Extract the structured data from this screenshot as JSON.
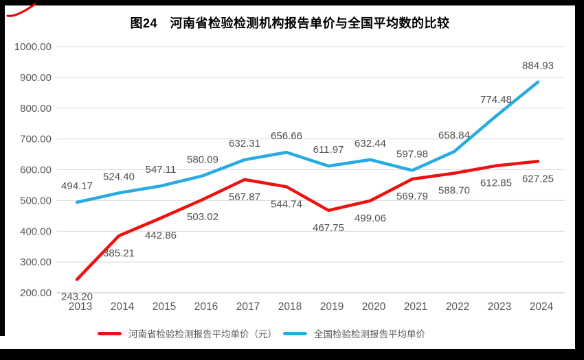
{
  "title": "图24　河南省检验检测机构报告单价与全国平均数的比较",
  "decorations": {
    "red_mark_color": "#e60000"
  },
  "chart_data": {
    "type": "line",
    "title": "图24　河南省检验检测机构报告单价与全国平均数的比较",
    "categories": [
      "2013",
      "2014",
      "2015",
      "2016",
      "2017",
      "2018",
      "2019",
      "2020",
      "2021",
      "2022",
      "2023",
      "2024"
    ],
    "series": [
      {
        "id": "henan",
        "name": "河南省检验检测报告平均单价（元）",
        "color": "#ED1111",
        "label_position": "below",
        "values": [
          243.2,
          385.21,
          442.86,
          503.02,
          567.87,
          544.74,
          467.75,
          499.06,
          569.79,
          588.7,
          612.85,
          627.25
        ],
        "labels": [
          "243.20",
          "385.21",
          "442.86",
          "503.02",
          "567.87",
          "544.74",
          "467.75",
          "499.06",
          "569.79",
          "588.70",
          "612.85",
          "627.25"
        ]
      },
      {
        "id": "national",
        "name": "全国检验检测报告平均单价",
        "color": "#29ABE2",
        "label_position": "above",
        "values": [
          494.17,
          524.4,
          547.11,
          580.09,
          632.31,
          656.66,
          611.97,
          632.44,
          597.98,
          658.84,
          774.48,
          884.93
        ],
        "labels": [
          "494.17",
          "524.40",
          "547.11",
          "580.09",
          "632.31",
          "656.66",
          "611.97",
          "632.44",
          "597.98",
          "658.84",
          "774.48",
          "884.93"
        ]
      }
    ],
    "ylim": [
      200,
      1000
    ],
    "yticks": [
      {
        "value": 1000,
        "label": "1000.00"
      },
      {
        "value": 900,
        "label": "900.00"
      },
      {
        "value": 800,
        "label": "800.00"
      },
      {
        "value": 700,
        "label": "700.00"
      },
      {
        "value": 600,
        "label": "600.00"
      },
      {
        "value": 500,
        "label": "500.00"
      },
      {
        "value": 400,
        "label": "400.00"
      },
      {
        "value": 300,
        "label": "300.00"
      },
      {
        "value": 200,
        "label": "200.00"
      }
    ],
    "grid": true,
    "legend_position": "bottom",
    "colors": {
      "axis_text": "#595959",
      "data_label": "#4f4f4f",
      "grid_line": "#D9D9D9",
      "axis_line": "#BFBFBF"
    }
  }
}
